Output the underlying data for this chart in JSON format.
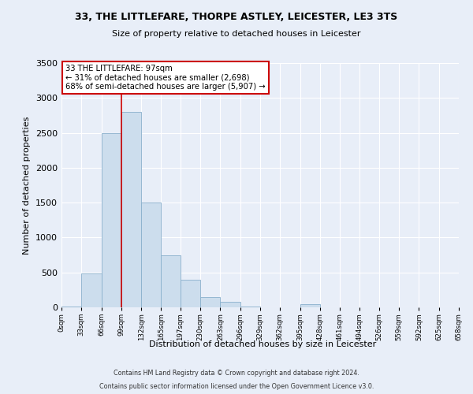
{
  "title1": "33, THE LITTLEFARE, THORPE ASTLEY, LEICESTER, LE3 3TS",
  "title2": "Size of property relative to detached houses in Leicester",
  "xlabel": "Distribution of detached houses by size in Leicester",
  "ylabel": "Number of detached properties",
  "bin_edges": [
    0,
    33,
    66,
    99,
    132,
    165,
    197,
    230,
    263,
    296,
    329,
    362,
    395,
    428,
    461,
    494,
    526,
    559,
    592,
    625,
    658
  ],
  "bin_labels": [
    "0sqm",
    "33sqm",
    "66sqm",
    "99sqm",
    "132sqm",
    "165sqm",
    "197sqm",
    "230sqm",
    "263sqm",
    "296sqm",
    "329sqm",
    "362sqm",
    "395sqm",
    "428sqm",
    "461sqm",
    "494sqm",
    "526sqm",
    "559sqm",
    "592sqm",
    "625sqm",
    "658sqm"
  ],
  "bar_heights": [
    10,
    480,
    2500,
    2800,
    1500,
    750,
    400,
    150,
    80,
    15,
    5,
    0,
    50,
    0,
    0,
    0,
    0,
    0,
    0,
    0
  ],
  "bar_color": "#ccdded",
  "bar_edge_color": "#8ab0cc",
  "ylim": [
    0,
    3500
  ],
  "yticks": [
    0,
    500,
    1000,
    1500,
    2000,
    2500,
    3000,
    3500
  ],
  "vline_x": 99,
  "vline_color": "#cc0000",
  "annotation_title": "33 THE LITTLEFARE: 97sqm",
  "annotation_line1": "← 31% of detached houses are smaller (2,698)",
  "annotation_line2": "68% of semi-detached houses are larger (5,907) →",
  "annotation_box_color": "#ffffff",
  "annotation_box_edge": "#cc0000",
  "footnote1": "Contains HM Land Registry data © Crown copyright and database right 2024.",
  "footnote2": "Contains public sector information licensed under the Open Government Licence v3.0.",
  "background_color": "#e8eef8",
  "plot_bg_color": "#e8eef8"
}
